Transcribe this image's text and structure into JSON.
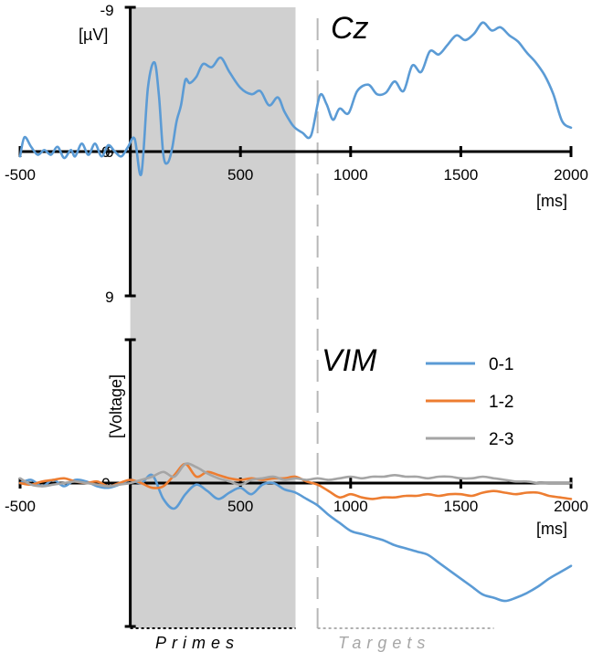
{
  "chart_data": [
    {
      "type": "line",
      "title": "Cz",
      "x_unit": "[ms]",
      "y_unit": "[µV]",
      "y_inverted": true,
      "xlim": [
        -500,
        2000
      ],
      "ylim": [
        -9,
        9
      ],
      "x_ticks": [
        -500,
        0,
        500,
        1000,
        1500,
        2000
      ],
      "y_ticks": [
        -9,
        0,
        9
      ],
      "series": [
        {
          "name": "",
          "color": "#5b9bd5",
          "x": [
            -500,
            -480,
            -450,
            -420,
            -390,
            -360,
            -330,
            -300,
            -270,
            -250,
            -220,
            -190,
            -160,
            -130,
            -100,
            -70,
            -40,
            -10,
            20,
            50,
            80,
            110,
            130,
            150,
            170,
            190,
            210,
            230,
            250,
            270,
            300,
            330,
            370,
            410,
            450,
            500,
            550,
            590,
            630,
            670,
            700,
            740,
            780,
            820,
            860,
            890,
            920,
            950,
            990,
            1030,
            1080,
            1120,
            1160,
            1200,
            1240,
            1280,
            1320,
            1360,
            1400,
            1440,
            1480,
            1520,
            1560,
            1600,
            1640,
            1680,
            1720,
            1760,
            1800,
            1840,
            1880,
            1920,
            1960,
            2000
          ],
          "y": [
            0.3,
            -0.9,
            -0.3,
            0.2,
            -0.1,
            0.2,
            -0.3,
            0.4,
            -0.1,
            0.3,
            -0.5,
            0.2,
            -0.5,
            0.3,
            -0.4,
            0.0,
            0.3,
            -0.3,
            -0.8,
            1.4,
            -4.0,
            -5.6,
            -3.5,
            0.2,
            0.7,
            -0.2,
            -1.9,
            -2.9,
            -4.5,
            -4.3,
            -4.7,
            -5.5,
            -5.3,
            -5.9,
            -5.0,
            -4.0,
            -3.6,
            -3.8,
            -2.9,
            -3.4,
            -2.5,
            -1.6,
            -1.2,
            -1.0,
            -3.5,
            -3.0,
            -2.0,
            -2.7,
            -2.4,
            -3.8,
            -4.2,
            -3.6,
            -3.7,
            -4.4,
            -3.8,
            -5.4,
            -5.0,
            -6.3,
            -6.1,
            -6.7,
            -7.3,
            -7.0,
            -7.4,
            -8.1,
            -7.6,
            -7.8,
            -7.3,
            -6.9,
            -6.2,
            -5.6,
            -4.8,
            -3.6,
            -1.9,
            -1.5
          ]
        }
      ]
    },
    {
      "type": "line",
      "title": "VIM",
      "x_unit": "[ms]",
      "y_unit": "[Voltage]",
      "y_inverted": true,
      "xlim": [
        -500,
        2000
      ],
      "ylim": [
        -9,
        9
      ],
      "x_ticks": [
        -500,
        0,
        500,
        1000,
        1500,
        2000
      ],
      "y_ticks": [],
      "legend_position": "top-right",
      "series": [
        {
          "name": "0-1",
          "color": "#5b9bd5",
          "x": [
            -500,
            -450,
            -400,
            -350,
            -300,
            -250,
            -200,
            -150,
            -100,
            -50,
            0,
            50,
            100,
            150,
            200,
            250,
            300,
            350,
            400,
            450,
            500,
            550,
            600,
            650,
            700,
            750,
            800,
            850,
            900,
            950,
            1000,
            1050,
            1100,
            1150,
            1200,
            1250,
            1300,
            1350,
            1400,
            1450,
            1500,
            1550,
            1600,
            1650,
            1700,
            1750,
            1800,
            1850,
            1900,
            1950,
            2000
          ],
          "y": [
            0.0,
            -0.2,
            0.2,
            -0.2,
            0.2,
            -0.2,
            -0.1,
            0.2,
            0.3,
            0.1,
            -0.2,
            0.0,
            -0.5,
            1.0,
            1.6,
            0.7,
            0.1,
            0.5,
            1.0,
            0.6,
            0.3,
            0.7,
            0.1,
            0.0,
            0.4,
            0.6,
            1.0,
            1.4,
            2.0,
            2.5,
            3.0,
            3.2,
            3.4,
            3.6,
            3.9,
            4.1,
            4.3,
            4.5,
            5.0,
            5.5,
            6.0,
            6.5,
            7.0,
            7.2,
            7.4,
            7.2,
            6.9,
            6.5,
            6.0,
            5.6,
            5.2
          ]
        },
        {
          "name": "1-2",
          "color": "#ed7d31",
          "x": [
            -500,
            -450,
            -400,
            -350,
            -300,
            -250,
            -200,
            -150,
            -100,
            -50,
            0,
            50,
            100,
            150,
            200,
            250,
            300,
            350,
            400,
            450,
            500,
            550,
            600,
            650,
            700,
            750,
            800,
            850,
            900,
            950,
            1000,
            1050,
            1100,
            1150,
            1200,
            1250,
            1300,
            1350,
            1400,
            1450,
            1500,
            1550,
            1600,
            1650,
            1700,
            1750,
            1800,
            1850,
            1900,
            1950,
            2000
          ],
          "y": [
            0.0,
            0.1,
            -0.1,
            -0.2,
            -0.3,
            -0.1,
            0.0,
            -0.1,
            0.2,
            0.0,
            -0.2,
            0.0,
            0.3,
            0.2,
            -0.5,
            -1.2,
            -0.4,
            -0.7,
            -0.5,
            -0.3,
            -0.2,
            -0.3,
            -0.2,
            -0.3,
            -0.3,
            -0.4,
            -0.1,
            0.1,
            0.5,
            0.9,
            0.7,
            0.9,
            1.0,
            0.9,
            0.9,
            0.8,
            0.8,
            0.7,
            0.8,
            0.7,
            0.7,
            0.8,
            0.6,
            0.5,
            0.6,
            0.7,
            0.6,
            0.6,
            0.8,
            0.9,
            1.0
          ]
        },
        {
          "name": "2-3",
          "color": "#a5a5a5",
          "x": [
            -500,
            -450,
            -400,
            -350,
            -300,
            -250,
            -200,
            -150,
            -100,
            -50,
            0,
            50,
            100,
            150,
            200,
            250,
            300,
            350,
            400,
            450,
            500,
            550,
            600,
            650,
            700,
            750,
            800,
            850,
            900,
            950,
            1000,
            1050,
            1100,
            1150,
            1200,
            1250,
            1300,
            1350,
            1400,
            1450,
            1500,
            1550,
            1600,
            1650,
            1700,
            1750,
            1800,
            1850,
            1900,
            1950,
            2000
          ],
          "y": [
            -0.3,
            0.1,
            0.2,
            0.1,
            0.0,
            -0.1,
            0.0,
            0.1,
            0.2,
            0.1,
            0.0,
            -0.2,
            -0.4,
            -0.7,
            -0.4,
            -1.2,
            -1.0,
            -0.6,
            -0.3,
            -0.1,
            0.1,
            -0.2,
            -0.3,
            -0.4,
            -0.2,
            -0.3,
            -0.2,
            -0.3,
            -0.2,
            -0.3,
            -0.4,
            -0.3,
            -0.4,
            -0.4,
            -0.5,
            -0.4,
            -0.4,
            -0.3,
            -0.4,
            -0.4,
            -0.3,
            -0.3,
            -0.4,
            -0.3,
            -0.2,
            -0.1,
            -0.1,
            0.0,
            0.0,
            0.0,
            0.0
          ]
        }
      ]
    }
  ],
  "annotations": {
    "primes_label": "Primes",
    "targets_label": "Targets",
    "primes_window": [
      0,
      750
    ],
    "target_onset": 850,
    "primes_shade_color": "#d0d0d0",
    "target_line_color": "#b7b7b7"
  }
}
